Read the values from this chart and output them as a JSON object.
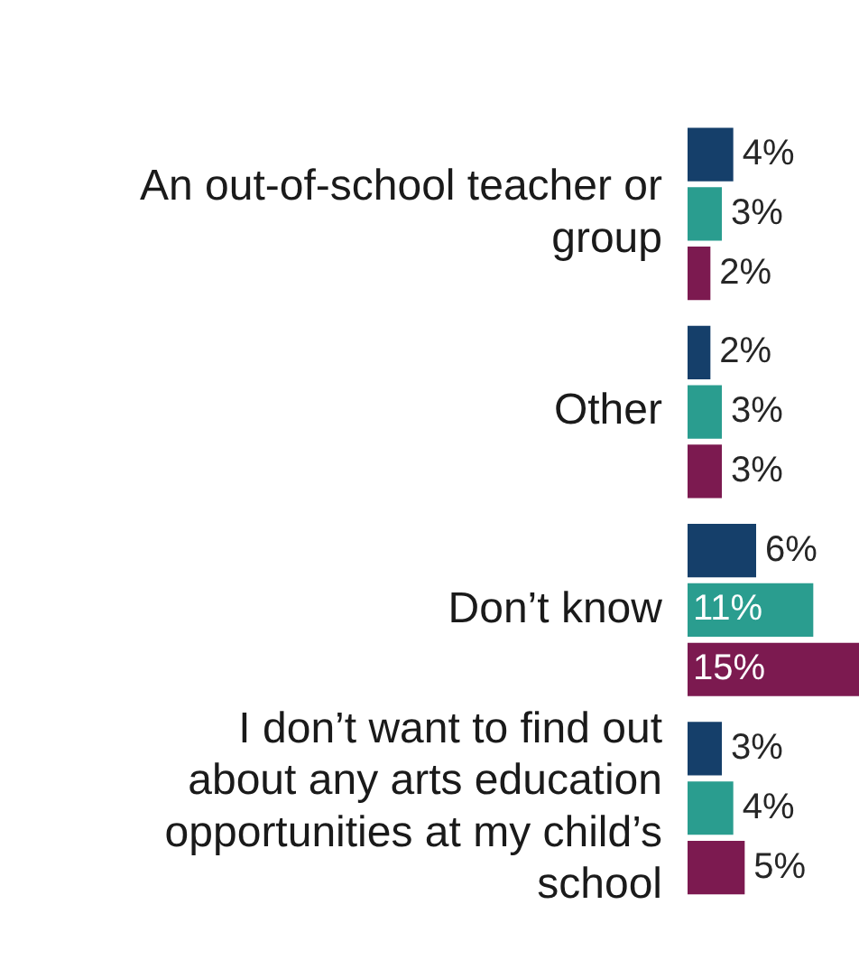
{
  "chart_data": {
    "type": "bar",
    "orientation": "horizontal",
    "categories": [
      "An out-of-school teacher or group",
      "Other",
      "Don’t know",
      "I don’t want to find out about any arts education opportunities at my child’s school"
    ],
    "series": [
      {
        "color": "#153f6a",
        "values": [
          4,
          2,
          6,
          3
        ],
        "value_labels": [
          "4%",
          "2%",
          "6%",
          "3%"
        ]
      },
      {
        "color": "#2a9d8f",
        "values": [
          3,
          3,
          11,
          4
        ],
        "value_labels": [
          "3%",
          "3%",
          "11%",
          "4%"
        ]
      },
      {
        "color": "#7c1a50",
        "values": [
          2,
          3,
          15,
          5
        ],
        "value_labels": [
          "2%",
          "3%",
          "15%",
          "5%"
        ]
      }
    ],
    "legend": false,
    "grid": false,
    "tick_labels": "y"
  }
}
